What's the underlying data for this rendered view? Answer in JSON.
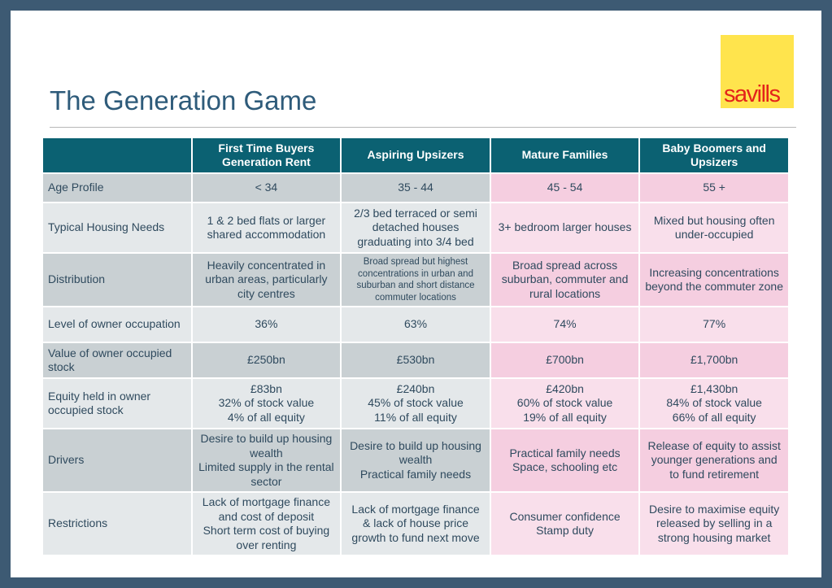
{
  "title": "The Generation Game",
  "logo": {
    "text": "savills"
  },
  "table": {
    "headers": [
      "",
      "First Time Buyers Generation Rent",
      "Aspiring Upsizers",
      "Mature Families",
      "Baby Boomers and Upsizers"
    ],
    "rows": [
      {
        "label": "Age Profile",
        "cells": [
          "< 34",
          "35 - 44",
          "45 - 54",
          "55 +"
        ]
      },
      {
        "label": "Typical Housing Needs",
        "cells": [
          "1 & 2 bed flats or larger shared accommodation",
          "2/3 bed terraced or semi detached houses graduating into  3/4 bed",
          "3+ bedroom larger houses",
          "Mixed but housing often under-occupied"
        ]
      },
      {
        "label": "Distribution",
        "cells": [
          "Heavily concentrated in urban areas, particularly city centres",
          "Broad spread but highest concentrations in urban and suburban and short distance commuter locations",
          "Broad spread across suburban, commuter and rural locations",
          "Increasing concentrations beyond the commuter zone"
        ]
      },
      {
        "label": "Level of owner occupation",
        "cells": [
          "36%",
          "63%",
          "74%",
          "77%"
        ]
      },
      {
        "label": "Value of owner occupied stock",
        "cells": [
          "£250bn",
          "£530bn",
          "£700bn",
          "£1,700bn"
        ]
      },
      {
        "label": "Equity held in owner occupied stock",
        "cells": [
          [
            "£83bn",
            "32% of stock value",
            "4% of all equity"
          ],
          [
            "£240bn",
            "45% of stock value",
            "11% of all equity"
          ],
          [
            "£420bn",
            "60% of stock value",
            "19% of all equity"
          ],
          [
            "£1,430bn",
            "84% of stock value",
            "66% of all equity"
          ]
        ]
      },
      {
        "label": "Drivers",
        "cells": [
          [
            "Desire to build up housing wealth",
            "Limited supply in the rental sector"
          ],
          [
            "Desire to build up housing wealth",
            "Practical family needs"
          ],
          [
            "Practical family needs",
            "Space, schooling etc"
          ],
          [
            "Release of equity to assist younger generations and to fund retirement"
          ]
        ]
      },
      {
        "label": "Restrictions",
        "cells": [
          [
            "Lack of mortgage finance and cost of deposit",
            "Short term cost of buying over renting"
          ],
          [
            "Lack of mortgage finance & lack  of house price growth to fund next move"
          ],
          [
            "Consumer confidence",
            "Stamp duty"
          ],
          [
            "Desire to maximise equity released by selling in a strong housing market"
          ]
        ]
      }
    ]
  }
}
